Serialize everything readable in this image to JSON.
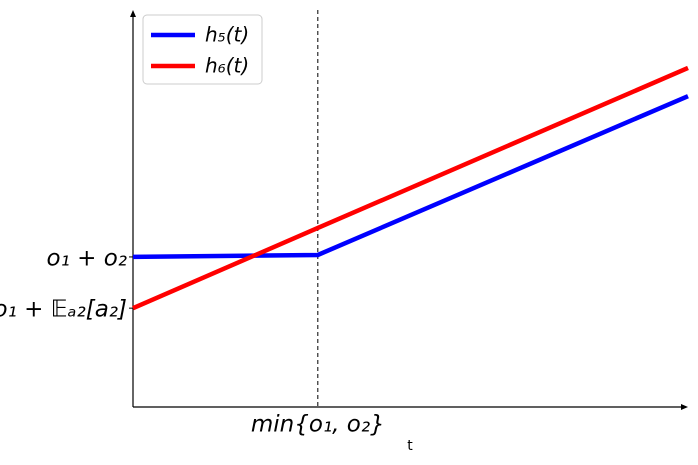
{
  "chart_data": {
    "type": "line",
    "xlabel": "t",
    "x": [
      0,
      3.33,
      10
    ],
    "series": [
      {
        "name": "h₅(t)",
        "color": "#0000ff",
        "values": [
          3.78,
          3.83,
          7.83
        ]
      },
      {
        "name": "h₆(t)",
        "color": "#ff0000",
        "values": [
          2.49,
          4.51,
          8.54
        ]
      }
    ],
    "xlim": [
      0,
      10
    ],
    "ylim": [
      0,
      10
    ],
    "xticks": [
      {
        "value": 3.33,
        "label": "min{o₁, o₂}"
      }
    ],
    "yticks": [
      {
        "value": 3.78,
        "label": "o₁ + o₂"
      },
      {
        "value": 2.49,
        "label": "o₁ + 𝔼ₐ₂[a₂]"
      }
    ],
    "legend": "upper left"
  }
}
